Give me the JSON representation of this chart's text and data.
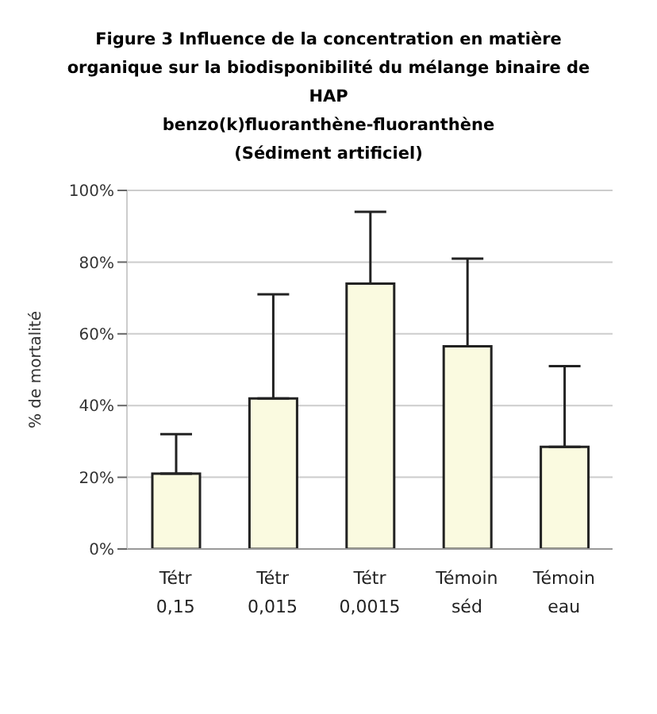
{
  "chart_data": {
    "type": "bar",
    "title": "Figure 3  Influence de la concentration en matière\norganique sur  la biodisponibilité du mélange binaire de\nHAP\nbenzo(k)fluoranthène-fluoranthène\n(Sédiment artificiel)",
    "ylabel": "% de mortalité",
    "categories": [
      "Tétr\n0,15",
      "Tétr\n0,015",
      "Tétr\n0,0015",
      "Témoin\nséd",
      "Témoin\neau"
    ],
    "values": [
      21,
      42,
      74,
      56.5,
      28.5
    ],
    "errors": [
      [
        21,
        32
      ],
      [
        42,
        71
      ],
      [
        74,
        94
      ],
      [
        56.5,
        81
      ],
      [
        28.5,
        51
      ]
    ],
    "color": "#fafae0",
    "ylim": [
      0,
      100
    ],
    "yticks": [
      {
        "value": 0,
        "label": "0%"
      },
      {
        "value": 20,
        "label": "20%"
      },
      {
        "value": 40,
        "label": "40%"
      },
      {
        "value": 60,
        "label": "60%"
      },
      {
        "value": 80,
        "label": "80%"
      },
      {
        "value": 100,
        "label": "100%"
      }
    ],
    "grid": "y"
  }
}
